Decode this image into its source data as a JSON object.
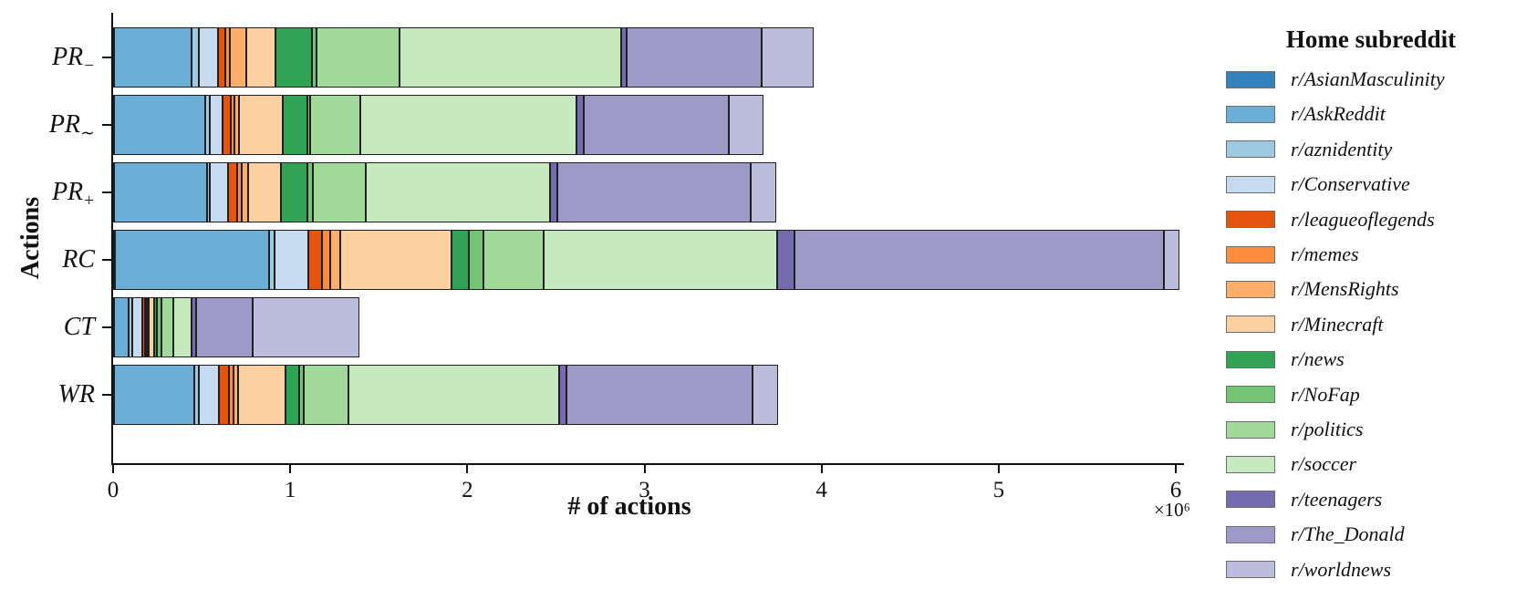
{
  "chart_data": {
    "type": "bar",
    "orientation": "horizontal",
    "stacked": true,
    "title": "",
    "xlabel": "# of actions",
    "ylabel": "Actions",
    "x_offset_text": "×10⁶",
    "x_ticks": [
      "0",
      "1",
      "2",
      "3",
      "4",
      "5",
      "6"
    ],
    "xlim": [
      0,
      6
    ],
    "value_unit": "millions of actions (axis ×10⁶)",
    "grid": false,
    "legend_title": "Home subreddit",
    "legend_position": "right",
    "categories": [
      {
        "label": "PR",
        "sub": "−"
      },
      {
        "label": "PR",
        "sub": "∼"
      },
      {
        "label": "PR",
        "sub": "+"
      },
      {
        "label": "RC",
        "sub": ""
      },
      {
        "label": "CT",
        "sub": ""
      },
      {
        "label": "WR",
        "sub": ""
      }
    ],
    "series": [
      {
        "name": "r/AsianMasculinity",
        "color": "#3182bd",
        "values": [
          0.005,
          0.005,
          0.005,
          0.01,
          0.005,
          0.005
        ]
      },
      {
        "name": "r/AskReddit",
        "color": "#6baed6",
        "values": [
          0.437,
          0.514,
          0.526,
          0.869,
          0.085,
          0.454
        ]
      },
      {
        "name": "r/aznidentity",
        "color": "#9ecae1",
        "values": [
          0.043,
          0.026,
          0.017,
          0.035,
          0.017,
          0.026
        ]
      },
      {
        "name": "r/Conservative",
        "color": "#c6dbef",
        "values": [
          0.108,
          0.072,
          0.1,
          0.189,
          0.06,
          0.111
        ]
      },
      {
        "name": "r/leagueoflegends",
        "color": "#e6550d",
        "values": [
          0.043,
          0.046,
          0.051,
          0.074,
          0.012,
          0.057
        ]
      },
      {
        "name": "r/memes",
        "color": "#fd8d3c",
        "values": [
          0.021,
          0.024,
          0.026,
          0.049,
          0.01,
          0.029
        ]
      },
      {
        "name": "r/MensRights",
        "color": "#fdae6b",
        "values": [
          0.096,
          0.026,
          0.035,
          0.057,
          0.012,
          0.026
        ]
      },
      {
        "name": "r/Minecraft",
        "color": "#fdd0a2",
        "values": [
          0.162,
          0.247,
          0.189,
          0.63,
          0.031,
          0.266
        ]
      },
      {
        "name": "r/news",
        "color": "#31a354",
        "values": [
          0.206,
          0.135,
          0.146,
          0.096,
          0.014,
          0.077
        ]
      },
      {
        "name": "r/NoFap",
        "color": "#74c476",
        "values": [
          0.029,
          0.02,
          0.034,
          0.081,
          0.025,
          0.026
        ]
      },
      {
        "name": "r/politics",
        "color": "#a1d99b",
        "values": [
          0.468,
          0.28,
          0.3,
          0.343,
          0.07,
          0.252
        ]
      },
      {
        "name": "r/soccer",
        "color": "#c7e9c0",
        "values": [
          1.25,
          1.22,
          1.037,
          1.318,
          0.103,
          1.188
        ]
      },
      {
        "name": "r/teenagers",
        "color": "#756bb1",
        "values": [
          0.03,
          0.045,
          0.041,
          0.094,
          0.026,
          0.041
        ]
      },
      {
        "name": "r/The_Donald",
        "color": "#9e9ac8",
        "values": [
          0.763,
          0.815,
          1.094,
          2.086,
          0.318,
          1.05
        ]
      },
      {
        "name": "r/worldnews",
        "color": "#bcbddc",
        "values": [
          0.292,
          0.195,
          0.144,
          0.09,
          0.601,
          0.147
        ]
      }
    ]
  }
}
